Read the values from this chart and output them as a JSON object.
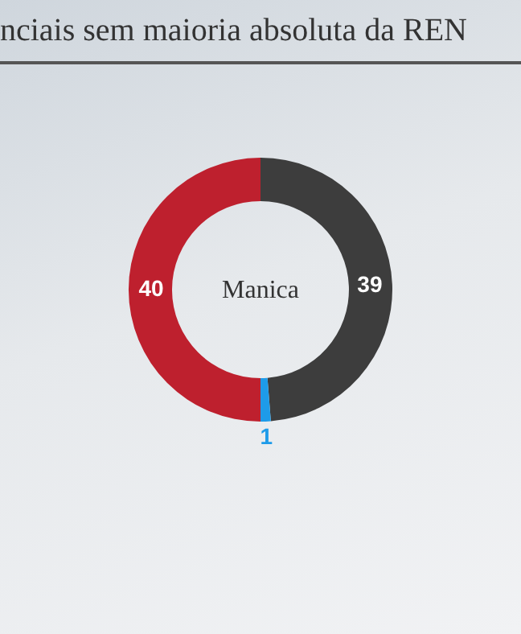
{
  "chart_data": {
    "type": "donut",
    "title": "nciais sem maioria absoluta da REN",
    "annotations": [
      "Manica"
    ],
    "categories": [
      null,
      null,
      null
    ],
    "values": [
      39,
      1,
      40
    ],
    "colors": [
      "#3d3d3d",
      "#1e9be9",
      "#be202e"
    ],
    "data_labels": true
  }
}
